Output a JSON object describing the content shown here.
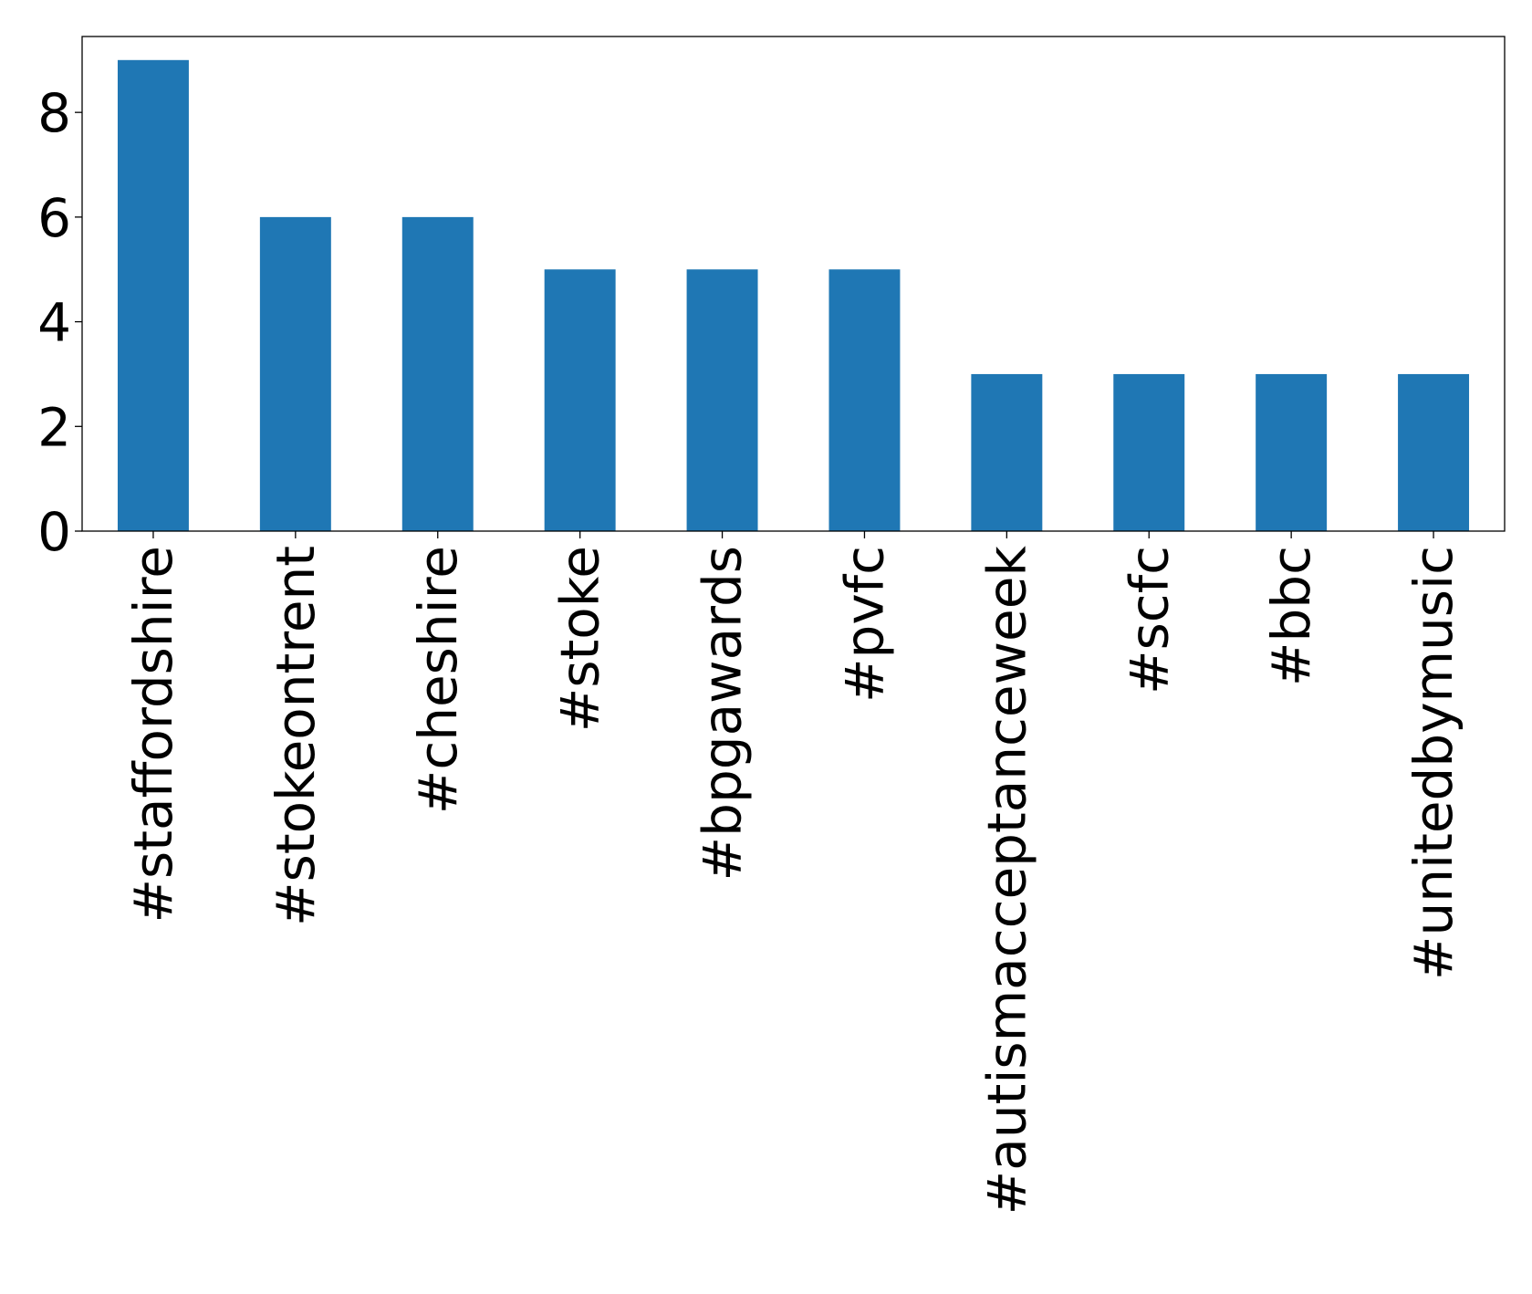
{
  "chart_data": {
    "type": "bar",
    "categories": [
      "#staffordshire",
      "#stokeontrent",
      "#cheshire",
      "#stoke",
      "#bpgawards",
      "#pvfc",
      "#autismacceptanceweek",
      "#scfc",
      "#bbc",
      "#unitedbymusic"
    ],
    "values": [
      9,
      6,
      6,
      5,
      5,
      5,
      3,
      3,
      3,
      3
    ],
    "y_ticks": [
      0,
      2,
      4,
      6,
      8
    ],
    "ylim": [
      0,
      9.45
    ],
    "bar_color": "#1f77b4",
    "grid": false,
    "legend": false
  }
}
